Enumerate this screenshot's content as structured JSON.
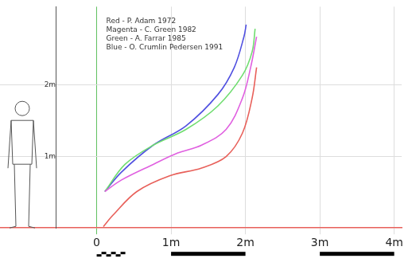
{
  "chart_data": {
    "type": "line",
    "series": [
      {
        "name": "Red - P. Adam 1972",
        "color": "#e8605a",
        "x": [
          0.09,
          0.22,
          0.54,
          0.98,
          1.41,
          1.74,
          1.96,
          2.09,
          2.15
        ],
        "values": [
          0.02,
          0.18,
          0.51,
          0.73,
          0.84,
          1.0,
          1.33,
          1.82,
          2.25
        ]
      },
      {
        "name": "Magenta - C. Green 1982",
        "color": "#e060e0",
        "x": [
          0.11,
          0.33,
          0.76,
          1.09,
          1.41,
          1.74,
          1.96,
          2.07,
          2.15
        ],
        "values": [
          0.51,
          0.67,
          0.89,
          1.05,
          1.16,
          1.38,
          1.82,
          2.25,
          2.68
        ]
      },
      {
        "name": "Green - A. Farrar 1985",
        "color": "#70dd70",
        "x": [
          0.11,
          0.38,
          0.76,
          1.2,
          1.63,
          1.96,
          2.09,
          2.13
        ],
        "values": [
          0.51,
          0.89,
          1.16,
          1.38,
          1.71,
          2.14,
          2.47,
          2.79
        ]
      },
      {
        "name": "Blue - O. Crumlin Pedersen 1991",
        "color": "#5050e0",
        "x": [
          0.11,
          0.33,
          0.76,
          1.2,
          1.63,
          1.85,
          1.98,
          2.01
        ],
        "values": [
          0.51,
          0.78,
          1.16,
          1.43,
          1.87,
          2.25,
          2.68,
          2.85
        ]
      }
    ],
    "xlim": [
      -1.3,
      4.1
    ],
    "xticks": [
      0,
      {
        "value": 1,
        "label": "1m"
      },
      {
        "value": 2,
        "label": "2m"
      },
      {
        "value": 3,
        "label": "3m"
      },
      {
        "value": 4,
        "label": "4m"
      }
    ],
    "ylim": [
      0,
      3.1
    ],
    "yticks": [
      {
        "value": 1,
        "label": "1m"
      },
      {
        "value": 2,
        "label": "2m"
      }
    ],
    "grid": true,
    "legend": "upper left"
  }
}
